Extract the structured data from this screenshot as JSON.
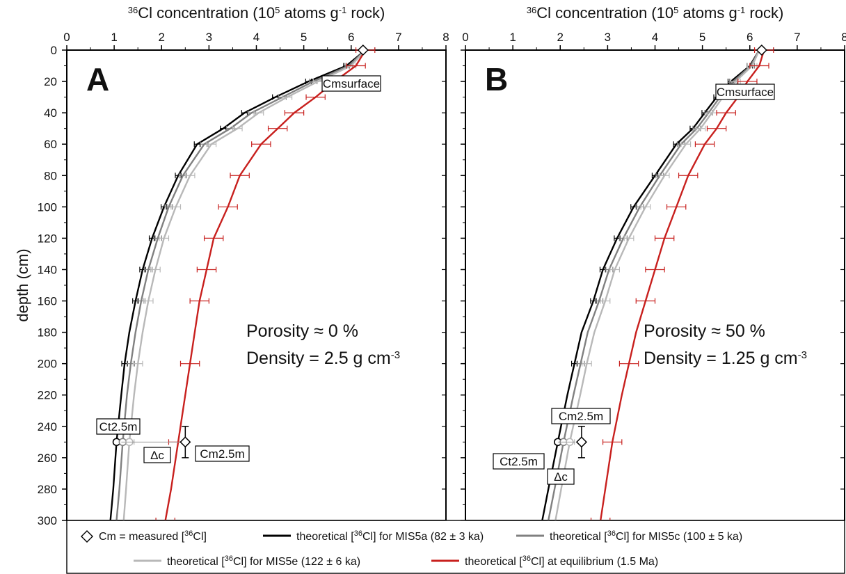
{
  "chart_data": {
    "type": "line",
    "shared_y_axis": {
      "label": "depth (cm)",
      "range": [
        0,
        300
      ],
      "ticks": [
        0,
        20,
        40,
        60,
        80,
        100,
        120,
        140,
        160,
        180,
        200,
        220,
        240,
        260,
        280,
        300
      ],
      "inverted": true
    },
    "panels": [
      {
        "letter": "A",
        "x_axis": {
          "label_sup": "36",
          "label_pre": "Cl concentration (10",
          "label_sup2": "5",
          "label_mid": " atoms g",
          "label_sup3": "-1",
          "label_post": " rock)",
          "range": [
            0,
            8
          ],
          "ticks": [
            0,
            1,
            2,
            3,
            4,
            5,
            6,
            7,
            8
          ],
          "position": "top"
        },
        "annotation": {
          "porosity": "Porosity ≈ 0 %",
          "density_pre": "Density = 2.5 g cm",
          "density_sup": "-3"
        },
        "labels": {
          "cm_surface": "Cmsurface",
          "ct_25": "Ct2.5m",
          "cm_25": "Cm2.5m",
          "delta": "Δc"
        },
        "measured": [
          {
            "x": 6.25,
            "y": 0,
            "xerr": 0.12,
            "yerr": 0
          },
          {
            "x": 2.5,
            "y": 250,
            "xerr": 0,
            "yerr": 10
          }
        ],
        "series": [
          {
            "key": "mis5a",
            "color": "#000000",
            "x": [
              6.3,
              5.9,
              5.1,
              4.4,
              3.75,
              3.3,
              2.75,
              2.35,
              2.05,
              1.8,
              1.6,
              1.45,
              1.32,
              1.22,
              1.15,
              1.05,
              0.98,
              0.92
            ],
            "y": [
              0,
              10,
              20,
              30,
              40,
              50,
              60,
              80,
              100,
              120,
              140,
              160,
              180,
              200,
              220,
              250,
              280,
              300
            ],
            "err_depths": [
              10,
              20,
              30,
              40,
              50,
              60,
              80,
              100,
              120,
              140,
              160,
              200,
              250
            ],
            "err_width": 0.06
          },
          {
            "key": "mis5c",
            "color": "#808080",
            "x": [
              6.3,
              5.95,
              5.2,
              4.55,
              3.9,
              3.45,
              2.9,
              2.45,
              2.15,
              1.92,
              1.72,
              1.57,
              1.45,
              1.35,
              1.27,
              1.18,
              1.11,
              1.05
            ],
            "y": [
              0,
              10,
              20,
              30,
              40,
              50,
              60,
              80,
              100,
              120,
              140,
              160,
              180,
              200,
              220,
              250,
              280,
              300
            ],
            "err_depths": [
              10,
              20,
              30,
              40,
              50,
              60,
              80,
              100,
              120,
              140,
              160,
              200,
              250
            ],
            "err_width": 0.08
          },
          {
            "key": "mis5e",
            "color": "#b8b8b8",
            "x": [
              6.3,
              6.0,
              5.3,
              4.65,
              4.05,
              3.6,
              3.05,
              2.6,
              2.3,
              2.05,
              1.87,
              1.72,
              1.6,
              1.5,
              1.42,
              1.32,
              1.25,
              1.2
            ],
            "y": [
              0,
              10,
              20,
              30,
              40,
              50,
              60,
              80,
              100,
              120,
              140,
              160,
              180,
              200,
              220,
              250,
              280,
              300
            ],
            "err_depths": [
              10,
              20,
              30,
              40,
              50,
              60,
              80,
              100,
              120,
              140,
              160,
              200,
              250
            ],
            "err_width": 0.1
          },
          {
            "key": "equilibrium",
            "color": "#c8201e",
            "x": [
              6.3,
              6.1,
              5.65,
              5.25,
              4.8,
              4.45,
              4.1,
              3.65,
              3.4,
              3.1,
              2.95,
              2.8,
              2.7,
              2.6,
              2.5,
              2.35,
              2.2,
              2.08
            ],
            "y": [
              0,
              10,
              20,
              30,
              40,
              50,
              60,
              80,
              100,
              120,
              140,
              160,
              180,
              200,
              220,
              250,
              280,
              300
            ],
            "err_depths": [
              0,
              10,
              20,
              30,
              40,
              50,
              60,
              80,
              100,
              120,
              140,
              160,
              200,
              250,
              300
            ],
            "err_width": 0.2
          }
        ]
      },
      {
        "letter": "B",
        "x_axis": {
          "label_sup": "36",
          "label_pre": "Cl concentration (10",
          "label_sup2": "5",
          "label_mid": " atoms g",
          "label_sup3": "-1",
          "label_post": " rock)",
          "range": [
            0,
            8
          ],
          "ticks": [
            0,
            1,
            2,
            3,
            4,
            5,
            6,
            7,
            8
          ],
          "position": "top"
        },
        "annotation": {
          "porosity": "Porosity ≈ 50 %",
          "density_pre": "Density = 1.25 g cm",
          "density_sup": "-3"
        },
        "labels": {
          "cm_surface": "Cmsurface",
          "ct_25": "Ct2.5m",
          "cm_25": "Cm2.5m",
          "delta": "Δc"
        },
        "measured": [
          {
            "x": 6.25,
            "y": 0,
            "xerr": 0.12,
            "yerr": 0
          },
          {
            "x": 2.45,
            "y": 250,
            "xerr": 0,
            "yerr": 10
          }
        ],
        "series": [
          {
            "key": "mis5a",
            "color": "#000000",
            "x": [
              6.2,
              6.0,
              5.6,
              5.3,
              5.05,
              4.8,
              4.45,
              4.0,
              3.55,
              3.2,
              2.9,
              2.7,
              2.45,
              2.3,
              2.15,
              1.95,
              1.75,
              1.62
            ],
            "y": [
              0,
              10,
              20,
              30,
              40,
              50,
              60,
              80,
              100,
              120,
              140,
              160,
              180,
              200,
              220,
              250,
              280,
              300
            ],
            "err_depths": [
              10,
              20,
              30,
              40,
              50,
              60,
              80,
              100,
              120,
              140,
              160,
              200,
              250
            ],
            "err_width": 0.06
          },
          {
            "key": "mis5c",
            "color": "#808080",
            "x": [
              6.2,
              6.02,
              5.65,
              5.37,
              5.13,
              4.88,
              4.55,
              4.1,
              3.68,
              3.33,
              3.03,
              2.82,
              2.58,
              2.43,
              2.28,
              2.07,
              1.88,
              1.75
            ],
            "y": [
              0,
              10,
              20,
              30,
              40,
              50,
              60,
              80,
              100,
              120,
              140,
              160,
              180,
              200,
              220,
              250,
              280,
              300
            ],
            "err_depths": [
              10,
              20,
              30,
              40,
              50,
              60,
              80,
              100,
              120,
              140,
              160,
              200,
              250
            ],
            "err_width": 0.08
          },
          {
            "key": "mis5e",
            "color": "#b8b8b8",
            "x": [
              6.2,
              6.05,
              5.7,
              5.43,
              5.2,
              4.96,
              4.65,
              4.2,
              3.8,
              3.45,
              3.15,
              2.95,
              2.72,
              2.56,
              2.42,
              2.2,
              2.02,
              1.9
            ],
            "y": [
              0,
              10,
              20,
              30,
              40,
              50,
              60,
              80,
              100,
              120,
              140,
              160,
              180,
              200,
              220,
              250,
              280,
              300
            ],
            "err_depths": [
              10,
              20,
              30,
              40,
              50,
              60,
              80,
              100,
              120,
              140,
              160,
              200,
              250
            ],
            "err_width": 0.1
          },
          {
            "key": "equilibrium",
            "color": "#c8201e",
            "x": [
              6.3,
              6.2,
              5.95,
              5.75,
              5.5,
              5.3,
              5.05,
              4.7,
              4.45,
              4.2,
              4.0,
              3.8,
              3.6,
              3.45,
              3.3,
              3.1,
              2.95,
              2.85
            ],
            "y": [
              0,
              10,
              20,
              30,
              40,
              50,
              60,
              80,
              100,
              120,
              140,
              160,
              180,
              200,
              220,
              250,
              280,
              300
            ],
            "err_depths": [
              0,
              10,
              20,
              30,
              40,
              50,
              60,
              80,
              100,
              120,
              140,
              160,
              200,
              250,
              300
            ],
            "err_width": 0.2
          }
        ]
      }
    ],
    "legend": {
      "placement": "bottom",
      "items": [
        {
          "key": "measured",
          "marker": "diamond",
          "text_pre": "Cm = measured [",
          "sup": "36",
          "text_post": "Cl]"
        },
        {
          "key": "mis5a",
          "color": "#000000",
          "text_pre": "theoretical [",
          "sup": "36",
          "text_post": "Cl] for MIS5a (82 ± 3 ka)"
        },
        {
          "key": "mis5c",
          "color": "#808080",
          "text_pre": "theoretical [",
          "sup": "36",
          "text_post": "Cl] for MIS5c (100 ± 5 ka)"
        },
        {
          "key": "mis5e",
          "color": "#b8b8b8",
          "text_pre": "theoretical [",
          "sup": "36",
          "text_post": "Cl] for MIS5e (122 ± 6 ka)"
        },
        {
          "key": "equilibrium",
          "color": "#c8201e",
          "text_pre": "theoretical [",
          "sup": "36",
          "text_post": "Cl] at equilibrium (1.5 Ma)"
        }
      ]
    }
  }
}
